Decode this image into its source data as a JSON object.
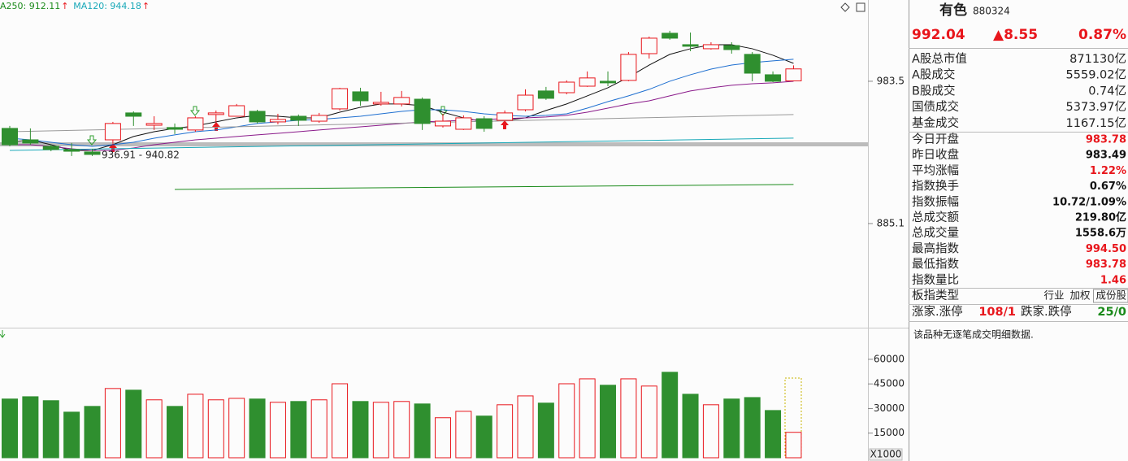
{
  "legend": [
    {
      "label": "A250: 912.11",
      "arrow": "↑",
      "color": "#1a8a1a"
    },
    {
      "label": "MA120: 944.18",
      "arrow": "↑",
      "color": "#18a8b8"
    }
  ],
  "price_chart": {
    "type": "candlestick",
    "open": [
      950.9,
      943.0,
      938.5,
      936.3,
      934.6,
      943.0,
      961.6,
      953.1,
      951.5,
      949.8,
      960.5,
      959.3,
      962.7,
      955.4,
      959.3,
      955.9,
      964.4,
      976.2,
      967.8,
      967.8,
      971.1,
      952.6,
      950.3,
      957.6,
      956.5,
      963.8,
      976.8,
      975.6,
      980.1,
      983.5,
      984.1,
      1002.6,
      1016.7,
      1008.8,
      1006.0,
      1008.2,
      1002.1,
      988.0,
      983.78
    ],
    "high": [
      952.6,
      950.9,
      939.6,
      940.8,
      936.8,
      955.4,
      962.7,
      959.3,
      954.3,
      959.3,
      963.3,
      967.8,
      963.8,
      961.0,
      960.5,
      961.6,
      979.0,
      979.0,
      976.2,
      976.8,
      972.3,
      961.0,
      959.9,
      959.3,
      963.3,
      977.9,
      979.6,
      984.1,
      990.3,
      990.3,
      1003.7,
      1014.4,
      1018.4,
      1017.2,
      1010.5,
      1010.5,
      1003.7,
      990.3,
      994.5
    ],
    "low": [
      938.5,
      939.6,
      935.1,
      931.8,
      931.8,
      940.8,
      952.6,
      949.8,
      947.0,
      948.6,
      955.4,
      959.3,
      954.3,
      953.7,
      952.6,
      954.8,
      963.3,
      966.6,
      966.6,
      966.1,
      949.8,
      951.5,
      949.8,
      948.6,
      955.4,
      962.7,
      970.6,
      974.5,
      979.6,
      980.1,
      983.5,
      999.2,
      1012.2,
      1004.3,
      1005.4,
      1002.6,
      983.5,
      982.9,
      983.78
    ],
    "close": [
      939.6,
      940.8,
      936.3,
      935.1,
      932.9,
      954.3,
      959.3,
      954.3,
      950.3,
      958.2,
      961.6,
      966.6,
      955.4,
      957.1,
      956.5,
      959.9,
      978.4,
      970.0,
      968.9,
      972.3,
      954.3,
      955.9,
      958.2,
      950.9,
      961.6,
      973.9,
      971.7,
      982.9,
      985.8,
      982.4,
      1002.1,
      1013.3,
      1013.3,
      1007.7,
      1008.8,
      1005.4,
      989.1,
      983.5,
      992.04
    ],
    "up_color": "#e8161c",
    "down_color": "#2f8f2f",
    "ylim": [
      813.1,
      1039.7
    ],
    "yticks": [
      983.5,
      885.1
    ],
    "lines": [
      {
        "color": "#111111",
        "values": [
          941.3,
          943.0,
          939.6,
          935.7,
          935.7,
          939.6,
          945.3,
          948.6,
          950.9,
          952.6,
          955.4,
          958.2,
          959.9,
          959.3,
          958.2,
          958.2,
          962.1,
          965.5,
          967.8,
          967.8,
          966.6,
          962.1,
          958.2,
          955.4,
          956.5,
          958.2,
          963.3,
          967.8,
          973.4,
          979.0,
          986.3,
          994.7,
          1002.1,
          1006.0,
          1008.8,
          1008.8,
          1006.0,
          1001.5,
          995.9
        ]
      },
      {
        "color": "#1e6fd0",
        "values": [
          944.1,
          943.0,
          941.3,
          939.6,
          938.5,
          939.6,
          941.3,
          944.1,
          946.4,
          948.6,
          949.8,
          952.0,
          954.3,
          955.4,
          956.5,
          957.1,
          958.2,
          959.3,
          961.0,
          962.7,
          963.8,
          963.8,
          962.7,
          961.0,
          959.9,
          959.3,
          959.9,
          961.0,
          964.9,
          969.4,
          973.4,
          977.9,
          983.5,
          988.0,
          991.9,
          994.7,
          996.4,
          997.6,
          998.7
        ]
      },
      {
        "color": "#8a1a8a",
        "values": [
          939.6,
          939.6,
          938.5,
          936.8,
          935.7,
          935.7,
          937.4,
          939.6,
          941.3,
          943.0,
          944.1,
          945.3,
          946.4,
          947.5,
          948.6,
          949.8,
          950.9,
          952.0,
          953.1,
          954.3,
          955.4,
          955.9,
          956.5,
          957.1,
          957.6,
          958.2,
          958.8,
          959.9,
          962.1,
          964.9,
          967.8,
          970.0,
          973.4,
          976.8,
          979.0,
          980.7,
          981.8,
          982.4,
          983.5
        ]
      },
      {
        "color": "#999999",
        "x": [
          0,
          38
        ],
        "values": [
          948.6,
          960.5
        ]
      },
      {
        "color": "#18a8b8",
        "x": [
          0,
          38
        ],
        "values": [
          935.7,
          944.18
        ]
      },
      {
        "color": "#1a8a1a",
        "x": [
          8,
          38
        ],
        "values": [
          908.7,
          912.11
        ]
      }
    ],
    "low_label": "936.91 - 940.82"
  },
  "volume_chart": {
    "type": "bar",
    "values": [
      35800,
      37200,
      34800,
      27800,
      31300,
      42200,
      41200,
      35300,
      31300,
      38700,
      35300,
      36200,
      35800,
      33800,
      34300,
      35300,
      45100,
      34300,
      33800,
      34300,
      32800,
      24400,
      28300,
      25400,
      32300,
      37700,
      33300,
      45100,
      48100,
      44200,
      48100,
      43700,
      52100,
      38700,
      32300,
      35800,
      36700,
      28800,
      15500
    ],
    "ylim": [
      0,
      78300
    ],
    "yticks": [
      60000,
      45000,
      30000,
      15000
    ],
    "unit": "X1000"
  },
  "side_panel": {
    "name": "有色",
    "code": "880324",
    "price": "992.04",
    "change": "▲8.55",
    "change_pct": "0.87%",
    "market_rows": [
      {
        "label": "A股总市值",
        "value": "871130亿"
      },
      {
        "label": "A股成交",
        "value": "5559.02亿"
      },
      {
        "label": "B股成交",
        "value": "0.74亿"
      },
      {
        "label": "国债成交",
        "value": "5373.97亿"
      },
      {
        "label": "基金成交",
        "value": "1167.15亿"
      }
    ],
    "index_rows": [
      {
        "label": "今日开盘",
        "value": "983.78",
        "color": "#e8161c"
      },
      {
        "label": "昨日收盘",
        "value": "983.49",
        "color": "#111111"
      },
      {
        "label": "平均涨幅",
        "value": "1.22%",
        "color": "#e8161c"
      },
      {
        "label": "指数换手",
        "value": "0.67%",
        "color": "#111111"
      },
      {
        "label": "指数振幅",
        "value": "10.72/1.09%",
        "color": "#111111"
      },
      {
        "label": "总成交额",
        "value": "219.80亿",
        "color": "#111111"
      },
      {
        "label": "总成交量",
        "value": "1558.6万",
        "color": "#111111"
      },
      {
        "label": "最高指数",
        "value": "994.50",
        "color": "#e8161c"
      },
      {
        "label": "最低指数",
        "value": "983.78",
        "color": "#e8161c"
      },
      {
        "label": "指数量比",
        "value": "1.46",
        "color": "#e8161c"
      }
    ],
    "type_row": {
      "label": "板指类型",
      "options": [
        "行业",
        "加权",
        "成份股"
      ]
    },
    "breadth_row": {
      "up_label": "涨家.涨停",
      "up_value": "108/1",
      "down_label": "跌家.跌停",
      "down_value": "25/0"
    },
    "note": "该品种无逐笔成交明细数据."
  }
}
